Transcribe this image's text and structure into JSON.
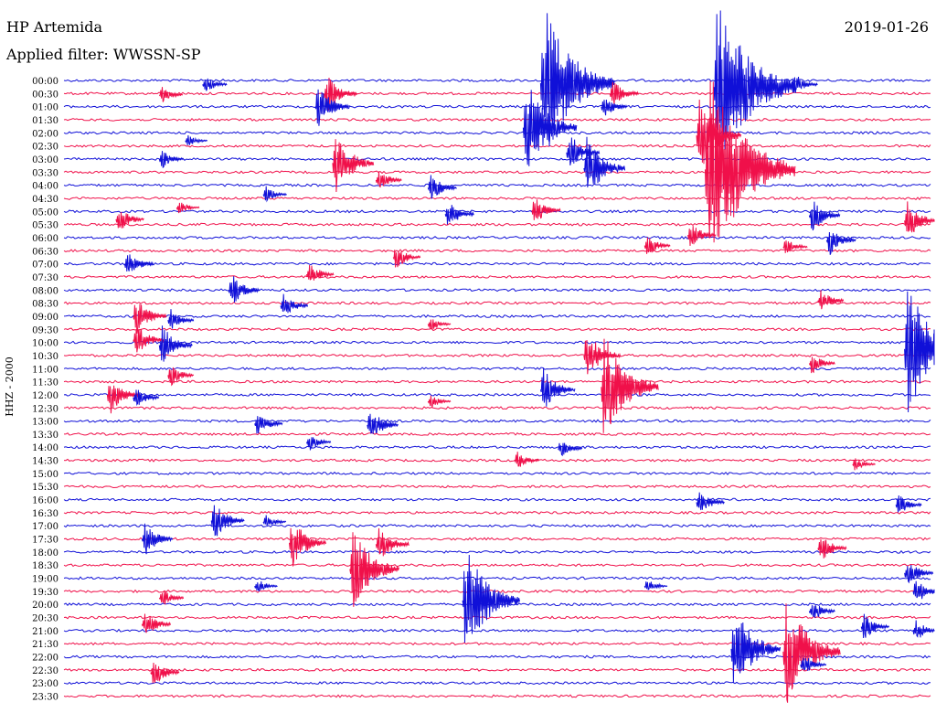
{
  "header": {
    "station": "HP Artemida",
    "date": "2019-01-26",
    "filter": "Applied filter: WWSSN-SP"
  },
  "chart_data": {
    "type": "line",
    "title": "HP Artemida",
    "subtitle": "Applied filter: WWSSN-SP",
    "date": "2019-01-26",
    "ylabel": "HHZ - 2000",
    "xlabel": "",
    "categories": [
      "00:00",
      "00:30",
      "01:00",
      "01:30",
      "02:00",
      "02:30",
      "03:00",
      "03:30",
      "04:00",
      "04:30",
      "05:00",
      "05:30",
      "06:00",
      "06:30",
      "07:00",
      "07:30",
      "08:00",
      "08:30",
      "09:00",
      "09:30",
      "10:00",
      "10:30",
      "11:00",
      "11:30",
      "12:00",
      "12:30",
      "13:00",
      "13:30",
      "14:00",
      "14:30",
      "15:00",
      "15:30",
      "16:00",
      "16:30",
      "17:00",
      "17:30",
      "18:00",
      "18:30",
      "19:00",
      "19:30",
      "20:00",
      "20:30",
      "21:00",
      "21:30",
      "22:00",
      "22:30",
      "23:00",
      "23:30"
    ],
    "trace_colors": [
      "#1010d8",
      "#f0104a"
    ],
    "events": [
      {
        "row": 0.2,
        "x": 0.55,
        "amp": 7.0,
        "color": "#1010d8"
      },
      {
        "row": 0.3,
        "x": 0.16,
        "amp": 1.0,
        "color": "#1010d8"
      },
      {
        "row": 0.3,
        "x": 0.84,
        "amp": 1.2,
        "color": "#1010d8"
      },
      {
        "row": 0.5,
        "x": 0.75,
        "amp": 8.0,
        "color": "#1010d8"
      },
      {
        "row": 1.0,
        "x": 0.3,
        "amp": 2.0,
        "color": "#f0104a"
      },
      {
        "row": 1.0,
        "x": 0.63,
        "amp": 1.5,
        "color": "#f0104a"
      },
      {
        "row": 1.1,
        "x": 0.11,
        "amp": 0.9,
        "color": "#f0104a"
      },
      {
        "row": 2.0,
        "x": 0.29,
        "amp": 2.2,
        "color": "#1010d8"
      },
      {
        "row": 2.0,
        "x": 0.62,
        "amp": 1.2,
        "color": "#1010d8"
      },
      {
        "row": 3.6,
        "x": 0.53,
        "amp": 4.5,
        "color": "#1010d8"
      },
      {
        "row": 4.6,
        "x": 0.14,
        "amp": 0.7,
        "color": "#1010d8"
      },
      {
        "row": 4.2,
        "x": 0.73,
        "amp": 3.5,
        "color": "#f0104a"
      },
      {
        "row": 5.5,
        "x": 0.58,
        "amp": 2.0,
        "color": "#1010d8"
      },
      {
        "row": 6.0,
        "x": 0.11,
        "amp": 1.0,
        "color": "#1010d8"
      },
      {
        "row": 6.3,
        "x": 0.31,
        "amp": 3.0,
        "color": "#f0104a"
      },
      {
        "row": 6.7,
        "x": 0.6,
        "amp": 3.0,
        "color": "#1010d8"
      },
      {
        "row": 6.8,
        "x": 0.74,
        "amp": 9.0,
        "color": "#f0104a"
      },
      {
        "row": 7.6,
        "x": 0.36,
        "amp": 1.2,
        "color": "#f0104a"
      },
      {
        "row": 8.2,
        "x": 0.42,
        "amp": 1.5,
        "color": "#1010d8"
      },
      {
        "row": 8.7,
        "x": 0.23,
        "amp": 0.9,
        "color": "#1010d8"
      },
      {
        "row": 9.7,
        "x": 0.13,
        "amp": 0.8,
        "color": "#f0104a"
      },
      {
        "row": 9.9,
        "x": 0.54,
        "amp": 1.5,
        "color": "#f0104a"
      },
      {
        "row": 10.2,
        "x": 0.44,
        "amp": 1.5,
        "color": "#1010d8"
      },
      {
        "row": 10.3,
        "x": 0.86,
        "amp": 1.8,
        "color": "#1010d8"
      },
      {
        "row": 10.6,
        "x": 0.06,
        "amp": 1.4,
        "color": "#f0104a"
      },
      {
        "row": 10.7,
        "x": 0.97,
        "amp": 2.0,
        "color": "#f0104a"
      },
      {
        "row": 11.8,
        "x": 0.72,
        "amp": 1.4,
        "color": "#f0104a"
      },
      {
        "row": 12.2,
        "x": 0.88,
        "amp": 1.6,
        "color": "#1010d8"
      },
      {
        "row": 12.6,
        "x": 0.67,
        "amp": 1.2,
        "color": "#f0104a"
      },
      {
        "row": 12.7,
        "x": 0.83,
        "amp": 1.0,
        "color": "#f0104a"
      },
      {
        "row": 13.5,
        "x": 0.38,
        "amp": 1.3,
        "color": "#f0104a"
      },
      {
        "row": 14.0,
        "x": 0.07,
        "amp": 1.5,
        "color": "#1010d8"
      },
      {
        "row": 14.8,
        "x": 0.28,
        "amp": 1.3,
        "color": "#f0104a"
      },
      {
        "row": 16.0,
        "x": 0.19,
        "amp": 1.8,
        "color": "#1010d8"
      },
      {
        "row": 16.8,
        "x": 0.87,
        "amp": 1.2,
        "color": "#f0104a"
      },
      {
        "row": 17.2,
        "x": 0.25,
        "amp": 1.3,
        "color": "#1010d8"
      },
      {
        "row": 18.0,
        "x": 0.08,
        "amp": 2.0,
        "color": "#f0104a"
      },
      {
        "row": 18.3,
        "x": 0.12,
        "amp": 1.2,
        "color": "#1010d8"
      },
      {
        "row": 18.6,
        "x": 0.42,
        "amp": 0.8,
        "color": "#f0104a"
      },
      {
        "row": 19.8,
        "x": 0.08,
        "amp": 1.8,
        "color": "#f0104a"
      },
      {
        "row": 20.2,
        "x": 0.11,
        "amp": 2.0,
        "color": "#1010d8"
      },
      {
        "row": 20.5,
        "x": 0.97,
        "amp": 6.0,
        "color": "#1010d8"
      },
      {
        "row": 21.0,
        "x": 0.6,
        "amp": 2.5,
        "color": "#f0104a"
      },
      {
        "row": 21.6,
        "x": 0.86,
        "amp": 1.2,
        "color": "#f0104a"
      },
      {
        "row": 22.5,
        "x": 0.12,
        "amp": 1.2,
        "color": "#f0104a"
      },
      {
        "row": 23.4,
        "x": 0.62,
        "amp": 5.0,
        "color": "#f0104a"
      },
      {
        "row": 23.6,
        "x": 0.55,
        "amp": 2.2,
        "color": "#1010d8"
      },
      {
        "row": 24.0,
        "x": 0.05,
        "amp": 2.0,
        "color": "#f0104a"
      },
      {
        "row": 24.2,
        "x": 0.08,
        "amp": 1.2,
        "color": "#1010d8"
      },
      {
        "row": 24.5,
        "x": 0.42,
        "amp": 0.8,
        "color": "#f0104a"
      },
      {
        "row": 26.2,
        "x": 0.22,
        "amp": 1.4,
        "color": "#1010d8"
      },
      {
        "row": 26.3,
        "x": 0.35,
        "amp": 1.8,
        "color": "#1010d8"
      },
      {
        "row": 27.6,
        "x": 0.28,
        "amp": 1.0,
        "color": "#1010d8"
      },
      {
        "row": 28.1,
        "x": 0.57,
        "amp": 1.0,
        "color": "#1010d8"
      },
      {
        "row": 29.0,
        "x": 0.52,
        "amp": 1.0,
        "color": "#f0104a"
      },
      {
        "row": 29.3,
        "x": 0.91,
        "amp": 0.8,
        "color": "#f0104a"
      },
      {
        "row": 32.2,
        "x": 0.73,
        "amp": 1.4,
        "color": "#1010d8"
      },
      {
        "row": 32.4,
        "x": 0.96,
        "amp": 1.2,
        "color": "#1010d8"
      },
      {
        "row": 33.6,
        "x": 0.17,
        "amp": 2.0,
        "color": "#1010d8"
      },
      {
        "row": 33.7,
        "x": 0.23,
        "amp": 0.8,
        "color": "#1010d8"
      },
      {
        "row": 35.0,
        "x": 0.09,
        "amp": 1.8,
        "color": "#1010d8"
      },
      {
        "row": 35.3,
        "x": 0.26,
        "amp": 2.5,
        "color": "#f0104a"
      },
      {
        "row": 35.4,
        "x": 0.36,
        "amp": 2.0,
        "color": "#f0104a"
      },
      {
        "row": 35.7,
        "x": 0.87,
        "amp": 1.5,
        "color": "#f0104a"
      },
      {
        "row": 37.3,
        "x": 0.33,
        "amp": 4.0,
        "color": "#f0104a"
      },
      {
        "row": 37.6,
        "x": 0.97,
        "amp": 1.5,
        "color": "#1010d8"
      },
      {
        "row": 38.6,
        "x": 0.22,
        "amp": 0.8,
        "color": "#1010d8"
      },
      {
        "row": 38.6,
        "x": 0.67,
        "amp": 0.8,
        "color": "#1010d8"
      },
      {
        "row": 39.0,
        "x": 0.98,
        "amp": 1.5,
        "color": "#1010d8"
      },
      {
        "row": 39.5,
        "x": 0.11,
        "amp": 1.0,
        "color": "#f0104a"
      },
      {
        "row": 39.7,
        "x": 0.46,
        "amp": 5.0,
        "color": "#1010d8"
      },
      {
        "row": 40.5,
        "x": 0.86,
        "amp": 1.2,
        "color": "#1010d8"
      },
      {
        "row": 41.5,
        "x": 0.09,
        "amp": 1.5,
        "color": "#f0104a"
      },
      {
        "row": 41.7,
        "x": 0.92,
        "amp": 1.4,
        "color": "#1010d8"
      },
      {
        "row": 42.0,
        "x": 0.98,
        "amp": 1.2,
        "color": "#1010d8"
      },
      {
        "row": 43.4,
        "x": 0.77,
        "amp": 4.0,
        "color": "#1010d8"
      },
      {
        "row": 43.6,
        "x": 0.83,
        "amp": 5.0,
        "color": "#f0104a"
      },
      {
        "row": 44.6,
        "x": 0.85,
        "amp": 1.2,
        "color": "#1010d8"
      },
      {
        "row": 45.2,
        "x": 0.1,
        "amp": 1.5,
        "color": "#f0104a"
      }
    ]
  }
}
